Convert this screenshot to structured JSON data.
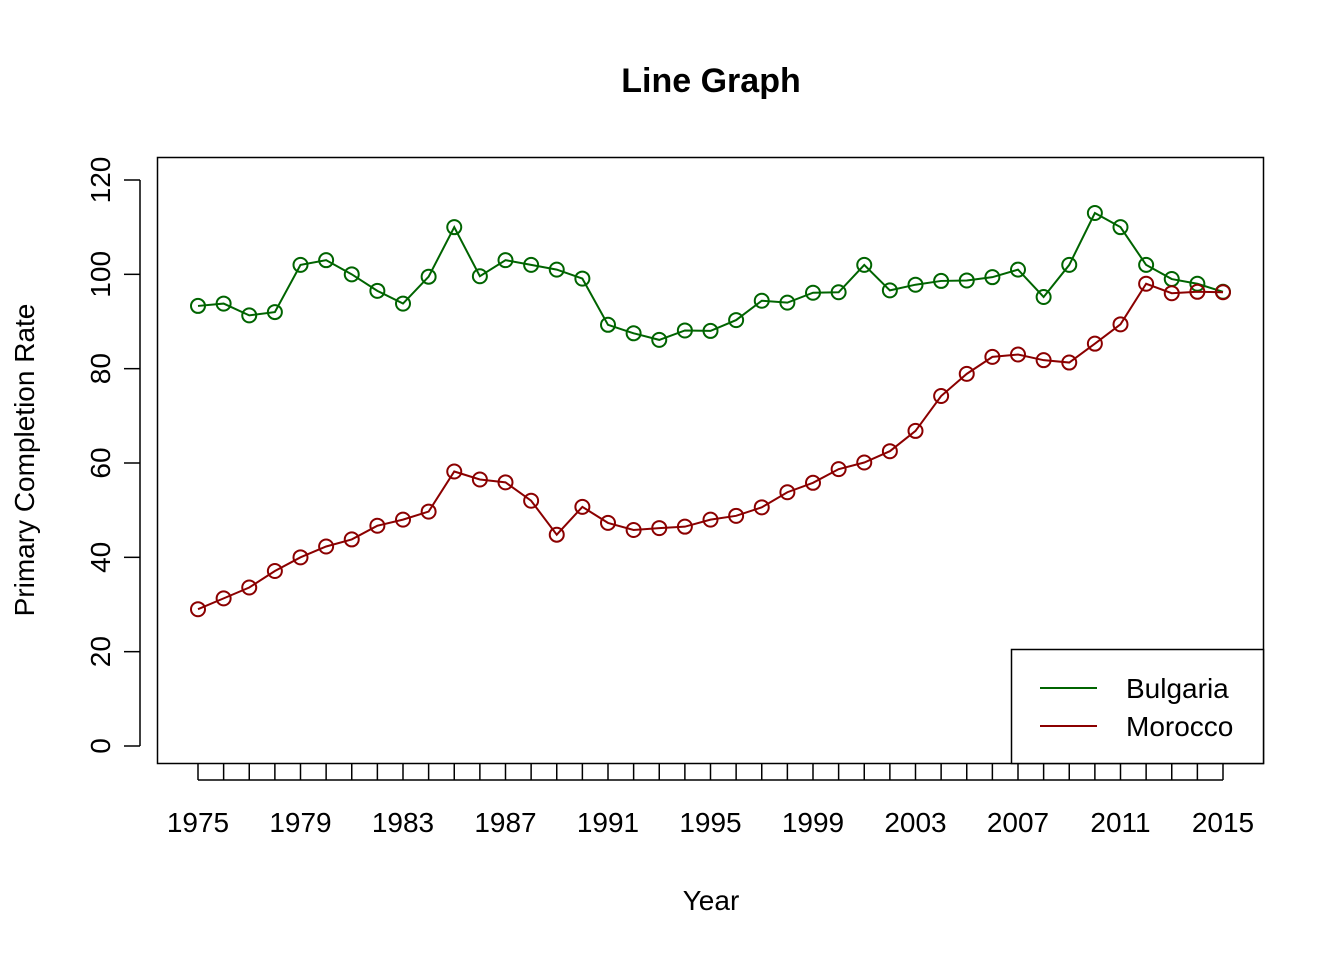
{
  "chart_data": {
    "type": "line",
    "title": "Line Graph",
    "xlabel": "Year",
    "ylabel": "Primary Completion Rate",
    "xlim": [
      1975,
      2015
    ],
    "ylim": [
      0,
      120
    ],
    "x_tick_labels": [
      "1975",
      "1979",
      "1983",
      "1987",
      "1991",
      "1995",
      "1999",
      "2003",
      "2007",
      "2011",
      "2015"
    ],
    "y_tick_labels": [
      "0",
      "20",
      "40",
      "60",
      "80",
      "100",
      "120"
    ],
    "legend_position": "bottom-right",
    "grid": false,
    "markers": "open-circle",
    "x": [
      1975,
      1976,
      1977,
      1978,
      1979,
      1980,
      1981,
      1982,
      1983,
      1984,
      1985,
      1986,
      1987,
      1988,
      1989,
      1990,
      1991,
      1992,
      1993,
      1994,
      1995,
      1996,
      1997,
      1998,
      1999,
      2000,
      2001,
      2002,
      2003,
      2004,
      2005,
      2006,
      2007,
      2008,
      2009,
      2010,
      2011,
      2012,
      2013,
      2014,
      2015
    ],
    "series": [
      {
        "name": "Bulgaria",
        "color": "#006400",
        "values": [
          93.3,
          93.8,
          91.3,
          92.0,
          102.0,
          103.0,
          100.0,
          96.5,
          93.8,
          99.5,
          110.0,
          99.6,
          103.0,
          102.0,
          101.0,
          99.1,
          89.3,
          87.5,
          86.1,
          88.1,
          88.0,
          90.3,
          94.4,
          94.0,
          96.1,
          96.2,
          102.0,
          96.6,
          97.8,
          98.6,
          98.7,
          99.4,
          101.0,
          95.2,
          102.0,
          113.0,
          110.0,
          102.0,
          99.0,
          98.0,
          96.3
        ]
      },
      {
        "name": "Morocco",
        "color": "#8B0000",
        "values": [
          29.0,
          31.3,
          33.6,
          37.1,
          40.0,
          42.3,
          43.8,
          46.7,
          48.0,
          49.7,
          58.2,
          56.5,
          55.9,
          52.0,
          44.8,
          50.7,
          47.3,
          45.8,
          46.2,
          46.5,
          48.0,
          48.8,
          50.6,
          53.8,
          55.8,
          58.7,
          60.1,
          62.5,
          66.8,
          74.2,
          78.9,
          82.5,
          83.0,
          81.8,
          81.3,
          85.3,
          89.4,
          98.0,
          96.0,
          96.3,
          96.2
        ]
      }
    ]
  }
}
